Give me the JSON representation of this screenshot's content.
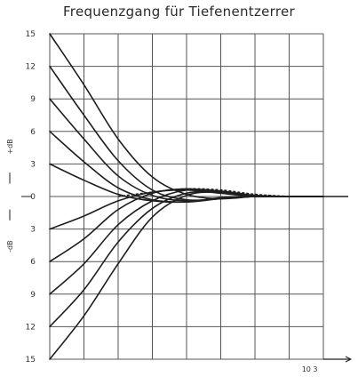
{
  "chart_data": {
    "type": "line",
    "title": "Frequenzgang für Tiefenentzerrer",
    "ylabel_plus": "+dB",
    "ylabel_minus": "-dB",
    "yticks": [
      {
        "value": 15,
        "label": "15"
      },
      {
        "value": 12,
        "label": "12"
      },
      {
        "value": 9,
        "label": "9"
      },
      {
        "value": 6,
        "label": "6"
      },
      {
        "value": 3,
        "label": "3"
      },
      {
        "value": 0,
        "label": "0"
      },
      {
        "value": -3,
        "label": "3"
      },
      {
        "value": -6,
        "label": "6"
      },
      {
        "value": -9,
        "label": "9"
      },
      {
        "value": -12,
        "label": "12"
      },
      {
        "value": -15,
        "label": "15"
      }
    ],
    "xticks": [
      "",
      "",
      "",
      "",
      "10 3"
    ],
    "ylim": [
      -15,
      15
    ],
    "xlim": [
      0,
      8
    ],
    "grid": true,
    "series": [
      {
        "x": [
          0,
          1,
          2,
          3,
          4,
          5,
          6,
          7,
          8
        ],
        "y": [
          15,
          10.3,
          5.3,
          1.8,
          0.2,
          -0.2,
          0,
          0,
          0
        ]
      },
      {
        "x": [
          0,
          1,
          2,
          3,
          4,
          5,
          6,
          7,
          8
        ],
        "y": [
          12,
          7.5,
          3.3,
          0.6,
          -0.3,
          -0.2,
          0,
          0,
          0
        ]
      },
      {
        "x": [
          0,
          1,
          2,
          3,
          4,
          5,
          6,
          7,
          8
        ],
        "y": [
          9,
          5.3,
          1.9,
          0.1,
          -0.4,
          -0.2,
          0,
          0,
          0
        ]
      },
      {
        "x": [
          0,
          1,
          2,
          3,
          4,
          5,
          6,
          7,
          8
        ],
        "y": [
          6,
          3.2,
          0.8,
          -0.3,
          -0.5,
          -0.2,
          0,
          0,
          0
        ]
      },
      {
        "x": [
          0,
          1,
          2,
          3,
          4,
          5,
          6,
          7,
          8
        ],
        "y": [
          3,
          1.5,
          0.2,
          -0.4,
          -0.5,
          -0.1,
          0,
          0,
          0
        ]
      },
      {
        "x": [
          0,
          1,
          2,
          3,
          4,
          5,
          6,
          7,
          8
        ],
        "y": [
          -3,
          -1.8,
          -0.4,
          0.4,
          0.6,
          0.3,
          0,
          0,
          0
        ]
      },
      {
        "x": [
          0,
          1,
          2,
          3,
          4,
          5,
          6,
          7,
          8
        ],
        "y": [
          -6,
          -3.9,
          -1.2,
          0.3,
          0.7,
          0.4,
          0.1,
          0,
          0
        ]
      },
      {
        "x": [
          0,
          1,
          2,
          3,
          4,
          5,
          6,
          7,
          8
        ],
        "y": [
          -9,
          -6.2,
          -2.6,
          -0.4,
          0.6,
          0.5,
          0.1,
          0,
          0
        ]
      },
      {
        "x": [
          0,
          1,
          2,
          3,
          4,
          5,
          6,
          7,
          8
        ],
        "y": [
          -12,
          -8.6,
          -4.2,
          -1.1,
          0.3,
          0.4,
          0.1,
          0,
          0
        ]
      },
      {
        "x": [
          0,
          1,
          2,
          3,
          4,
          5,
          6,
          7,
          8
        ],
        "y": [
          -15,
          -11,
          -6.2,
          -1.9,
          0.1,
          0.4,
          0.1,
          0,
          0
        ]
      }
    ],
    "reference_dashed": {
      "x": [
        2,
        3,
        4,
        5,
        6,
        7
      ],
      "y": [
        0,
        0.4,
        0.7,
        0.6,
        0.2,
        0
      ]
    },
    "colors": {
      "line": "#1e1e1e",
      "grid": "#555555"
    }
  }
}
